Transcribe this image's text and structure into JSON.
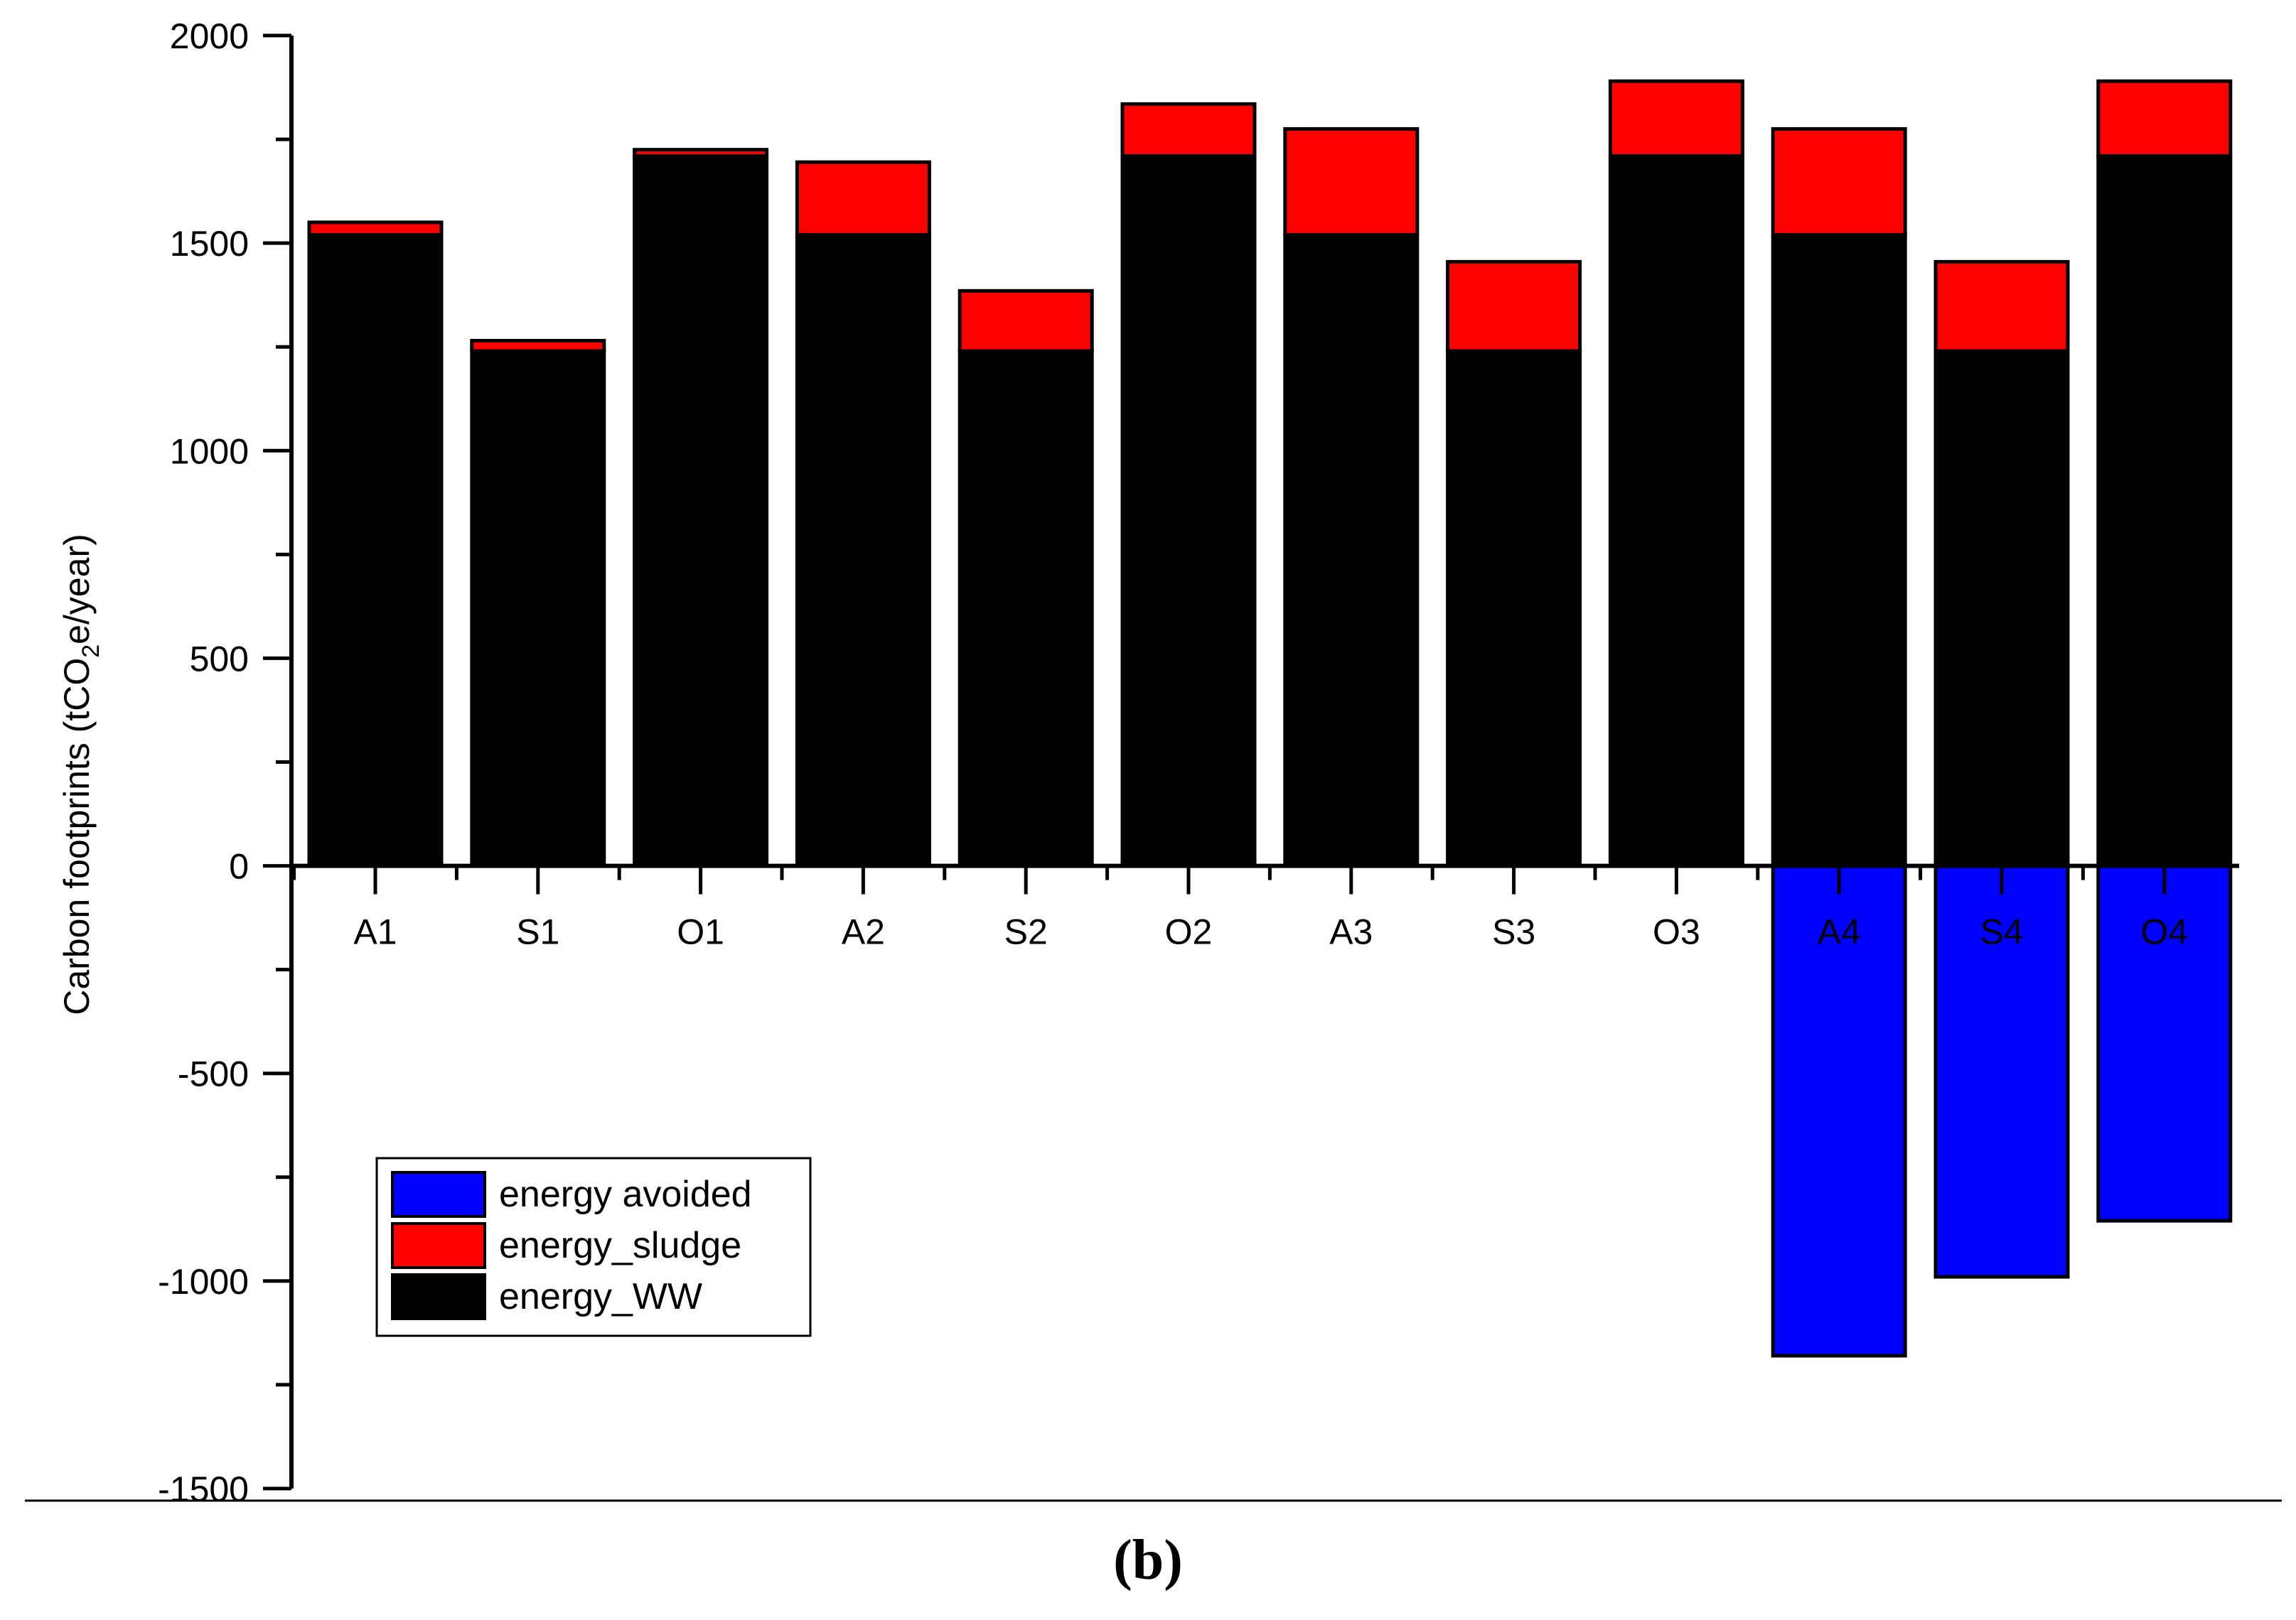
{
  "chart_data": {
    "type": "bar",
    "stacked": true,
    "categories": [
      "A1",
      "S1",
      "O1",
      "A2",
      "S2",
      "O2",
      "A3",
      "S3",
      "O3",
      "A4",
      "S4",
      "O4"
    ],
    "series": [
      {
        "name": "energy_WW",
        "color": "#000000",
        "values": [
          1520,
          1240,
          1710,
          1520,
          1240,
          1710,
          1520,
          1240,
          1710,
          1520,
          1240,
          1710
        ]
      },
      {
        "name": "energy_sludge",
        "color": "#ff0000",
        "values": [
          30,
          25,
          15,
          175,
          145,
          125,
          255,
          215,
          180,
          255,
          215,
          180
        ]
      },
      {
        "name": "energy avoided",
        "color": "#0000ff",
        "values": [
          0,
          0,
          0,
          0,
          0,
          0,
          0,
          0,
          0,
          -1180,
          -990,
          -855
        ]
      }
    ],
    "legend_order": [
      "energy avoided",
      "energy_sludge",
      "energy_WW"
    ],
    "legend_position": "lower-left",
    "ylim": [
      -1500,
      2000
    ],
    "yticks": [
      -1500,
      -1000,
      -500,
      0,
      500,
      1000,
      1500,
      2000
    ],
    "ylabel_parts": [
      "Carbon footprints (tCO",
      "2",
      "e/year)"
    ],
    "xlabel": "",
    "grid": false,
    "panel_label": "(b)"
  }
}
